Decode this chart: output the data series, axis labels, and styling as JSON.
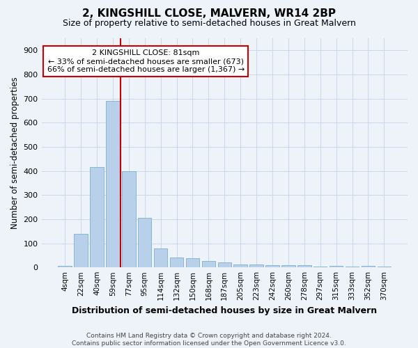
{
  "title": "2, KINGSHILL CLOSE, MALVERN, WR14 2BP",
  "subtitle": "Size of property relative to semi-detached houses in Great Malvern",
  "xlabel": "Distribution of semi-detached houses by size in Great Malvern",
  "ylabel": "Number of semi-detached properties",
  "footer_line1": "Contains HM Land Registry data © Crown copyright and database right 2024.",
  "footer_line2": "Contains public sector information licensed under the Open Government Licence v3.0.",
  "bar_labels": [
    "4sqm",
    "22sqm",
    "40sqm",
    "59sqm",
    "77sqm",
    "95sqm",
    "114sqm",
    "132sqm",
    "150sqm",
    "168sqm",
    "187sqm",
    "205sqm",
    "223sqm",
    "242sqm",
    "260sqm",
    "278sqm",
    "297sqm",
    "315sqm",
    "333sqm",
    "352sqm",
    "370sqm"
  ],
  "bar_values": [
    7,
    140,
    415,
    690,
    400,
    205,
    78,
    40,
    38,
    27,
    20,
    11,
    12,
    10,
    9,
    8,
    4,
    5,
    4,
    5,
    2
  ],
  "bar_color": "#b8d0ea",
  "bar_edge_color": "#7aafd4",
  "grid_color": "#c8d8ea",
  "background_color": "#eef3fa",
  "vline_bar_index": 4,
  "vline_color": "#cc0000",
  "annotation_title": "2 KINGSHILL CLOSE: 81sqm",
  "annotation_line1": "← 33% of semi-detached houses are smaller (673)",
  "annotation_line2": "66% of semi-detached houses are larger (1,367) →",
  "annotation_box_color": "#ffffff",
  "annotation_box_edge": "#cc0000",
  "ylim": [
    0,
    950
  ],
  "yticks": [
    0,
    100,
    200,
    300,
    400,
    500,
    600,
    700,
    800,
    900
  ]
}
